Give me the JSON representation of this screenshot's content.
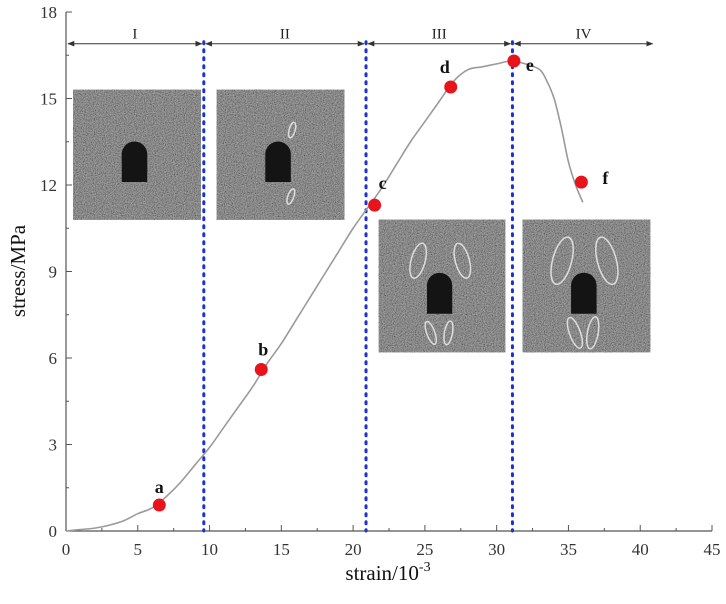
{
  "chart_data": {
    "type": "line",
    "xlabel": "strain/10",
    "xlabel_exponent": "-3",
    "ylabel": "stress/MPa",
    "xlim": [
      0,
      45
    ],
    "ylim": [
      0,
      18
    ],
    "x_ticks": [
      "0",
      "5",
      "10",
      "15",
      "20",
      "25",
      "30",
      "35",
      "40",
      "45"
    ],
    "y_ticks": [
      "0",
      "3",
      "6",
      "9",
      "12",
      "15",
      "18"
    ],
    "grid": false,
    "curve_color": "#9a9a9a",
    "series": [
      {
        "x": [
          0,
          1,
          2,
          3,
          4,
          5,
          6,
          7,
          8,
          9,
          10,
          11,
          12,
          13,
          14,
          15,
          16,
          17,
          18,
          19,
          20,
          21,
          22,
          23,
          24,
          25,
          26,
          27,
          28,
          29,
          30,
          31,
          32,
          33,
          33.5,
          34,
          34.5,
          35,
          35.5,
          36
        ],
        "y": [
          0,
          0.05,
          0.1,
          0.2,
          0.35,
          0.6,
          0.8,
          1.2,
          1.7,
          2.3,
          2.9,
          3.6,
          4.3,
          5.0,
          5.8,
          6.5,
          7.3,
          8.1,
          8.9,
          9.7,
          10.5,
          11.2,
          11.9,
          12.7,
          13.5,
          14.2,
          14.9,
          15.6,
          16.0,
          16.1,
          16.2,
          16.3,
          16.2,
          16.0,
          15.6,
          15.0,
          14.0,
          12.8,
          12.0,
          11.4
        ]
      }
    ],
    "points": [
      {
        "label": "a",
        "x": 6.5,
        "y": 0.9
      },
      {
        "label": "b",
        "x": 13.6,
        "y": 5.6
      },
      {
        "label": "c",
        "x": 21.5,
        "y": 11.3
      },
      {
        "label": "d",
        "x": 26.8,
        "y": 15.4
      },
      {
        "label": "e",
        "x": 31.2,
        "y": 16.3
      },
      {
        "label": "f",
        "x": 35.9,
        "y": 12.1
      }
    ],
    "point_color": "#e8141c",
    "stage_boundaries": [
      9.6,
      20.9,
      31.1
    ],
    "boundary_color": "#1d2fd6",
    "stages": [
      {
        "label": "I",
        "x0": 0,
        "x1": 9.6
      },
      {
        "label": "II",
        "x0": 9.6,
        "x1": 20.9
      },
      {
        "label": "III",
        "x0": 20.9,
        "x1": 31.1
      },
      {
        "label": "IV",
        "x0": 31.1,
        "x1": 41
      }
    ],
    "stage_arrow_y": 16.9,
    "insets": [
      {
        "name": "inset-image-stage-1",
        "x0": 0.5,
        "x1": 9.4,
        "y0": 10.8,
        "y1": 15.3,
        "cracks": 0
      },
      {
        "name": "inset-image-stage-2",
        "x0": 10.5,
        "x1": 19.4,
        "y0": 10.8,
        "y1": 15.3,
        "cracks": 2
      },
      {
        "name": "inset-image-stage-3",
        "x0": 21.8,
        "x1": 30.6,
        "y0": 6.2,
        "y1": 10.8,
        "cracks": 4
      },
      {
        "name": "inset-image-stage-4",
        "x0": 31.8,
        "x1": 40.7,
        "y0": 6.2,
        "y1": 10.8,
        "cracks": 4
      }
    ]
  }
}
